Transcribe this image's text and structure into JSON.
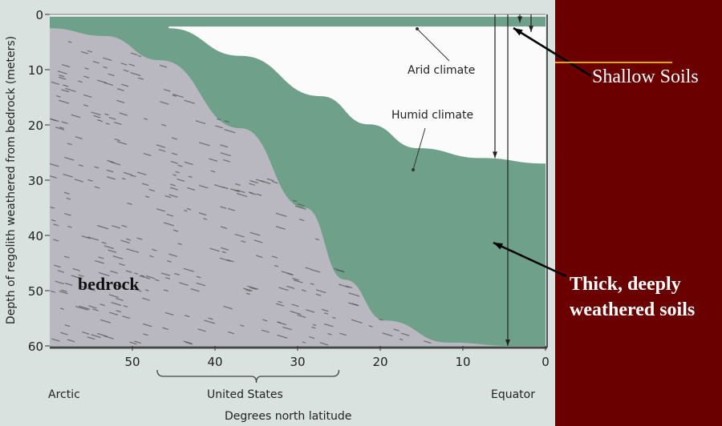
{
  "chart_data": {
    "type": "area",
    "xlabel": "Degrees north latitude",
    "ylabel": "Depth of regolith weathered from bedrock (meters)",
    "xlim": [
      60,
      0
    ],
    "ylim": [
      0,
      60
    ],
    "x_ticks": [
      "50",
      "40",
      "30",
      "20",
      "10",
      "0"
    ],
    "y_ticks": [
      "0",
      "10",
      "20",
      "30",
      "40",
      "50",
      "60"
    ],
    "x_region_labels": {
      "arctic": "Arctic",
      "us": "United States",
      "equator": "Equator"
    },
    "series": [
      {
        "name": "Arid climate",
        "boundary": "base of arid-climate regolith",
        "x": [
          60,
          0
        ],
        "y": [
          2.2,
          2.2
        ]
      },
      {
        "name": "Humid climate",
        "boundary": "top of humid-climate regolith",
        "x": [
          45.6,
          36.9,
          27.2,
          21.4,
          15.5,
          7.8,
          0
        ],
        "y": [
          2.5,
          7.5,
          14.8,
          19.9,
          24.2,
          26,
          27
        ]
      },
      {
        "name": "bedrock",
        "boundary": "bedrock surface",
        "x": [
          60,
          53.4,
          46.6,
          36.9,
          29.1,
          24.3,
          19.4,
          11.7,
          3.9,
          0
        ],
        "y": [
          2.5,
          3.9,
          8.3,
          20.6,
          35,
          48,
          55.4,
          59.4,
          60,
          60
        ]
      }
    ],
    "labels": {
      "arid": "Arid climate",
      "humid": "Humid climate",
      "bedrock": "bedrock"
    },
    "colors": {
      "regolith": "#6fa08a",
      "bedrock": "#b9b8c0",
      "background": "#d9e2df",
      "slide": "#6b0000",
      "highlight": "#e0a800"
    }
  },
  "annotations": {
    "shallow": "Shallow Soils",
    "thick_line1": "Thick, deeply",
    "thick_line2": "weathered soils"
  }
}
